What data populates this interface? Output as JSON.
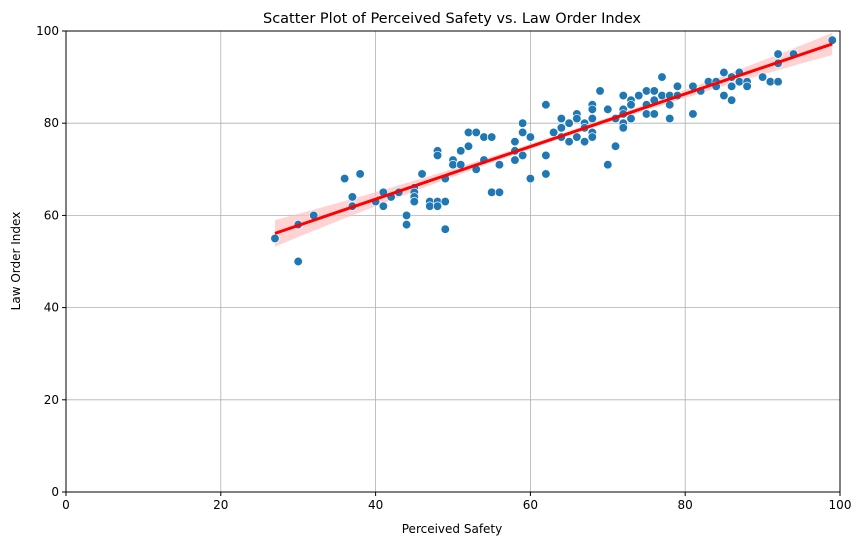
{
  "chart_data": {
    "type": "scatter",
    "title": "Scatter Plot of Perceived Safety vs. Law Order Index",
    "xlabel": "Perceived Safety",
    "ylabel": "Law Order Index",
    "xlim": [
      0,
      100
    ],
    "ylim": [
      0,
      100
    ],
    "xticks": [
      0,
      20,
      40,
      60,
      80,
      100
    ],
    "yticks": [
      0,
      20,
      40,
      60,
      80,
      100
    ],
    "grid": true,
    "colors": {
      "points": "#1f77b4",
      "regression": "#ff0000",
      "confidence_band": "#ffc0c0",
      "grid": "#b0b0b0"
    },
    "regression": {
      "x_range": [
        27,
        99
      ],
      "y_start": 56.1,
      "y_end": 97.2
    },
    "points": [
      [
        27,
        55
      ],
      [
        30,
        50
      ],
      [
        30,
        58
      ],
      [
        32,
        60
      ],
      [
        36,
        68
      ],
      [
        37,
        62
      ],
      [
        37,
        64
      ],
      [
        38,
        69
      ],
      [
        40,
        63
      ],
      [
        41,
        65
      ],
      [
        41,
        62
      ],
      [
        42,
        64
      ],
      [
        43,
        65
      ],
      [
        44,
        60
      ],
      [
        44,
        58
      ],
      [
        45,
        66
      ],
      [
        45,
        65
      ],
      [
        45,
        64
      ],
      [
        45,
        63
      ],
      [
        46,
        69
      ],
      [
        47,
        63
      ],
      [
        47,
        62
      ],
      [
        48,
        74
      ],
      [
        48,
        73
      ],
      [
        48,
        63
      ],
      [
        48,
        62
      ],
      [
        49,
        63
      ],
      [
        49,
        68
      ],
      [
        49,
        57
      ],
      [
        50,
        72
      ],
      [
        50,
        71
      ],
      [
        51,
        74
      ],
      [
        51,
        71
      ],
      [
        52,
        78
      ],
      [
        52,
        75
      ],
      [
        53,
        78
      ],
      [
        53,
        70
      ],
      [
        54,
        77
      ],
      [
        54,
        72
      ],
      [
        55,
        77
      ],
      [
        55,
        65
      ],
      [
        56,
        71
      ],
      [
        56,
        65
      ],
      [
        58,
        76
      ],
      [
        58,
        74
      ],
      [
        58,
        72
      ],
      [
        59,
        80
      ],
      [
        59,
        78
      ],
      [
        59,
        73
      ],
      [
        60,
        77
      ],
      [
        60,
        68
      ],
      [
        62,
        84
      ],
      [
        62,
        73
      ],
      [
        62,
        69
      ],
      [
        63,
        78
      ],
      [
        64,
        81
      ],
      [
        64,
        79
      ],
      [
        64,
        77
      ],
      [
        65,
        80
      ],
      [
        65,
        76
      ],
      [
        66,
        82
      ],
      [
        66,
        81
      ],
      [
        66,
        77
      ],
      [
        67,
        80
      ],
      [
        67,
        79
      ],
      [
        67,
        76
      ],
      [
        68,
        84
      ],
      [
        68,
        83
      ],
      [
        68,
        81
      ],
      [
        68,
        78
      ],
      [
        68,
        77
      ],
      [
        69,
        87
      ],
      [
        70,
        83
      ],
      [
        70,
        71
      ],
      [
        71,
        81
      ],
      [
        71,
        75
      ],
      [
        72,
        86
      ],
      [
        72,
        83
      ],
      [
        72,
        82
      ],
      [
        72,
        80
      ],
      [
        72,
        79
      ],
      [
        73,
        85
      ],
      [
        73,
        84
      ],
      [
        73,
        81
      ],
      [
        74,
        86
      ],
      [
        75,
        87
      ],
      [
        75,
        84
      ],
      [
        75,
        82
      ],
      [
        76,
        87
      ],
      [
        76,
        85
      ],
      [
        76,
        82
      ],
      [
        77,
        90
      ],
      [
        77,
        86
      ],
      [
        78,
        86
      ],
      [
        78,
        84
      ],
      [
        78,
        81
      ],
      [
        79,
        88
      ],
      [
        79,
        86
      ],
      [
        81,
        88
      ],
      [
        81,
        82
      ],
      [
        82,
        87
      ],
      [
        83,
        89
      ],
      [
        84,
        89
      ],
      [
        84,
        88
      ],
      [
        85,
        91
      ],
      [
        85,
        86
      ],
      [
        86,
        90
      ],
      [
        86,
        88
      ],
      [
        86,
        85
      ],
      [
        87,
        91
      ],
      [
        87,
        89
      ],
      [
        88,
        89
      ],
      [
        88,
        88
      ],
      [
        90,
        90
      ],
      [
        91,
        89
      ],
      [
        92,
        95
      ],
      [
        92,
        93
      ],
      [
        92,
        89
      ],
      [
        94,
        95
      ],
      [
        99,
        98
      ]
    ]
  }
}
